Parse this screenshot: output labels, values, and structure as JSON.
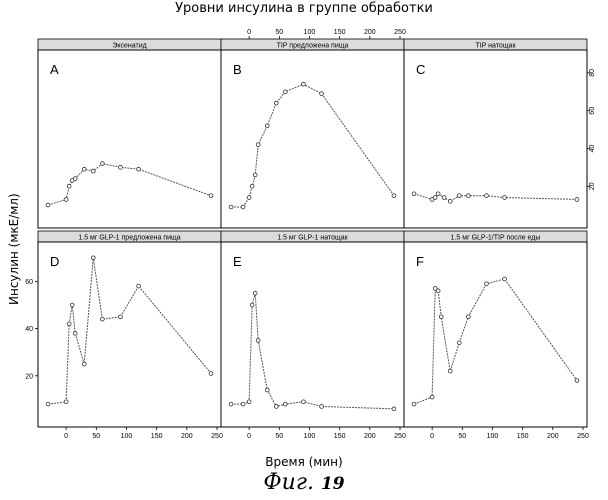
{
  "title": "Уровни инсулина в группе обработки",
  "xlabel": "Время (мин)",
  "ylabel": "Инсулин (мкЕ/мл)",
  "caption_text": "Фиг.",
  "caption_number": "19",
  "colors": {
    "line": "#555555",
    "frame": "#000000",
    "strip": "#dcdcdc"
  },
  "chart_data": [
    {
      "type": "line",
      "letter": "A",
      "strip_label": "Эксенатид",
      "x": [
        -30,
        0,
        5,
        10,
        15,
        30,
        45,
        60,
        90,
        120,
        240
      ],
      "y": [
        10,
        13,
        20,
        23,
        24,
        29,
        28,
        32,
        30,
        29,
        15
      ],
      "xlim": [
        -40,
        250
      ],
      "ylim": [
        0,
        90
      ]
    },
    {
      "type": "line",
      "letter": "B",
      "strip_label": "ТIP предложена пища",
      "x": [
        -30,
        -10,
        0,
        5,
        10,
        15,
        30,
        45,
        60,
        90,
        120,
        240
      ],
      "y": [
        9,
        9,
        14,
        20,
        26,
        42,
        52,
        64,
        70,
        74,
        69,
        15
      ],
      "xlim": [
        -40,
        250
      ],
      "ylim": [
        0,
        90
      ]
    },
    {
      "type": "line",
      "letter": "C",
      "strip_label": "ТIP натощак",
      "x": [
        -30,
        0,
        5,
        10,
        20,
        30,
        45,
        60,
        90,
        120,
        240
      ],
      "y": [
        16,
        13,
        14,
        16,
        14,
        12,
        15,
        15,
        15,
        14,
        13
      ],
      "xlim": [
        -40,
        250
      ],
      "ylim": [
        0,
        90
      ]
    },
    {
      "type": "line",
      "letter": "D",
      "strip_label": "1.5 мг GLP-1 предложена пища",
      "x": [
        -30,
        0,
        5,
        10,
        15,
        30,
        45,
        60,
        90,
        120,
        240
      ],
      "y": [
        8,
        9,
        42,
        50,
        38,
        25,
        70,
        44,
        45,
        58,
        21
      ],
      "xlim": [
        -40,
        250
      ],
      "ylim": [
        0,
        75
      ]
    },
    {
      "type": "line",
      "letter": "E",
      "strip_label": "1.5 мг GLP-1 натощак",
      "x": [
        -30,
        -10,
        0,
        5,
        10,
        15,
        30,
        45,
        60,
        90,
        120,
        240
      ],
      "y": [
        8,
        8,
        9,
        50,
        55,
        35,
        14,
        7,
        8,
        9,
        7,
        6
      ],
      "xlim": [
        -40,
        250
      ],
      "ylim": [
        0,
        75
      ]
    },
    {
      "type": "line",
      "letter": "F",
      "strip_label": "1.5 мг GLP-1/ТIP после еды",
      "x": [
        -30,
        0,
        5,
        10,
        15,
        30,
        45,
        60,
        90,
        120,
        240
      ],
      "y": [
        8,
        11,
        57,
        56,
        45,
        22,
        34,
        45,
        59,
        61,
        18
      ],
      "xlim": [
        -40,
        250
      ],
      "ylim": [
        0,
        75
      ]
    }
  ],
  "x_ticks": [
    0,
    50,
    100,
    150,
    200,
    250
  ],
  "x_tick_labels": [
    "0",
    "50",
    "100",
    "150",
    "200",
    "250"
  ],
  "y_ticks_top": [
    20,
    40,
    60,
    80
  ],
  "y_tick_labels_top": [
    "20",
    "40",
    "60",
    "80"
  ],
  "y_ticks_bottom": [
    20,
    40,
    60
  ],
  "y_tick_labels_bottom": [
    "20",
    "40",
    "60"
  ]
}
